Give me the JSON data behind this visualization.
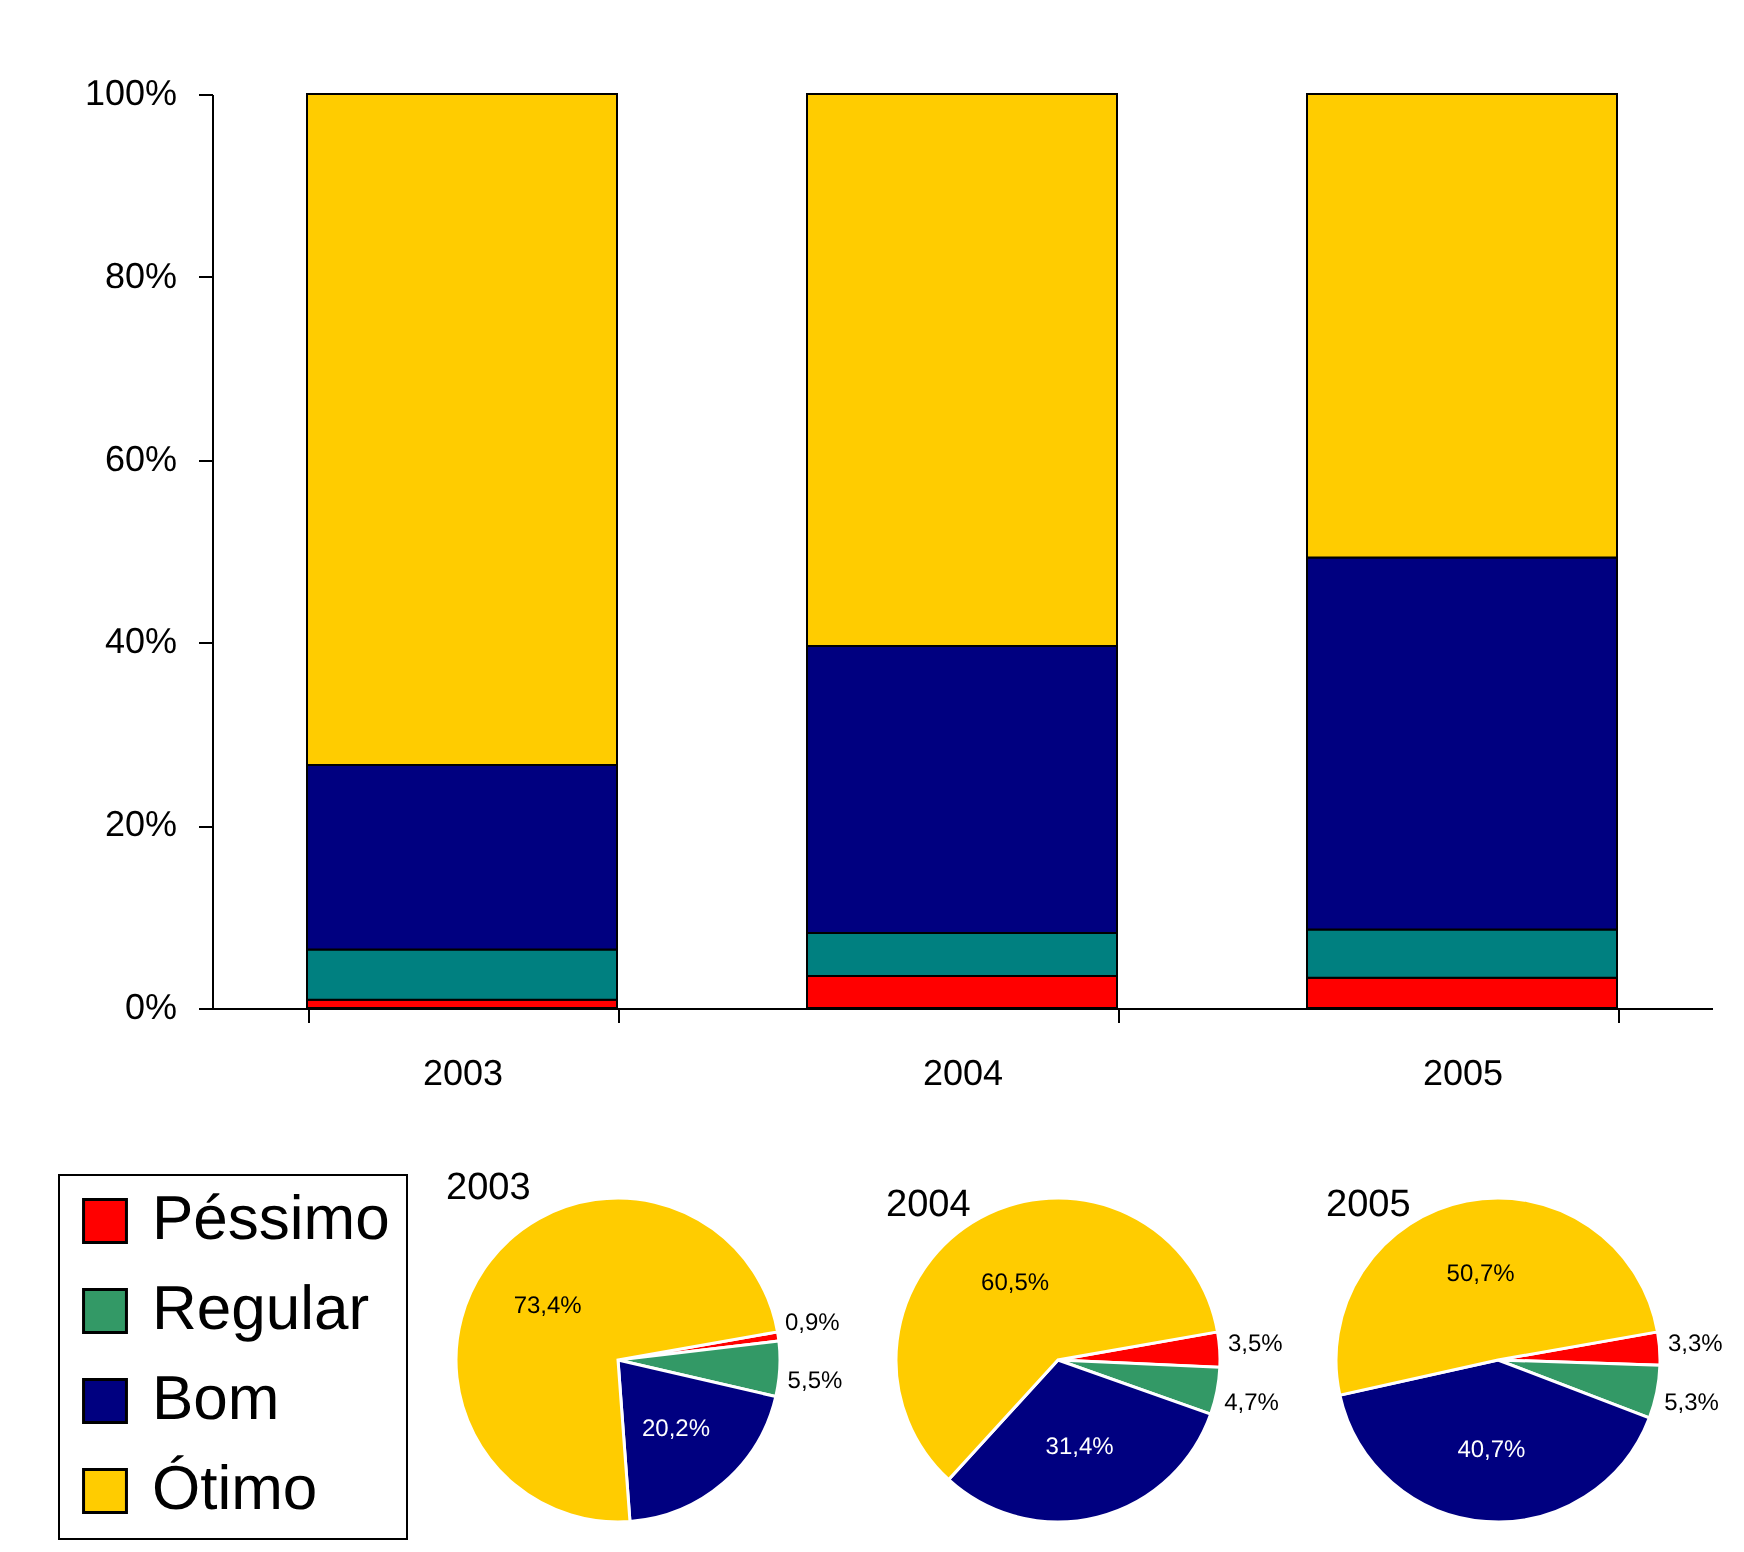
{
  "chart_data": [
    {
      "type": "bar",
      "stacked": true,
      "categories": [
        "2003",
        "2004",
        "2005"
      ],
      "series": [
        {
          "color": "#ff0000",
          "values": [
            0.9,
            3.5,
            3.3
          ]
        },
        {
          "color": "#008080",
          "values": [
            5.5,
            4.7,
            5.3
          ]
        },
        {
          "color": "#000080",
          "values": [
            20.2,
            31.4,
            40.7
          ]
        },
        {
          "color": "#ffcc00",
          "values": [
            73.4,
            60.4,
            50.7
          ]
        }
      ],
      "ylim": [
        0,
        100
      ],
      "yticks": [
        {
          "value": 0,
          "label": "0%"
        },
        {
          "value": 20,
          "label": "20%"
        },
        {
          "value": 40,
          "label": "40%"
        },
        {
          "value": 60,
          "label": "60%"
        },
        {
          "value": 80,
          "label": "80%"
        },
        {
          "value": 100,
          "label": "100%"
        }
      ]
    },
    {
      "type": "pie",
      "title": "2003",
      "categories": [
        "Péssimo",
        "Regular",
        "Bom",
        "Ótimo"
      ],
      "values": [
        0.9,
        5.5,
        20.2,
        73.4
      ],
      "colors": [
        "#ff0000",
        "#339966",
        "#000080",
        "#ffcc00"
      ],
      "value_labels": [
        "0,9%",
        "5,5%",
        "20,2%",
        "73,4%"
      ],
      "legend": "left"
    },
    {
      "type": "pie",
      "title": "2004",
      "categories": [
        null,
        null,
        null,
        null
      ],
      "values": [
        3.5,
        4.7,
        31.4,
        60.5
      ],
      "colors": [
        "#ff0000",
        "#339966",
        "#000080",
        "#ffcc00"
      ],
      "value_labels": [
        "3,5%",
        "4,7%",
        "31,4%",
        "60,5%"
      ]
    },
    {
      "type": "pie",
      "title": "2005",
      "categories": [
        null,
        null,
        null,
        null
      ],
      "values": [
        3.3,
        5.3,
        40.7,
        50.7
      ],
      "colors": [
        "#ff0000",
        "#339966",
        "#000080",
        "#ffcc00"
      ],
      "value_labels": [
        "3,3%",
        "5,3%",
        "40,7%",
        "50,7%"
      ]
    }
  ]
}
